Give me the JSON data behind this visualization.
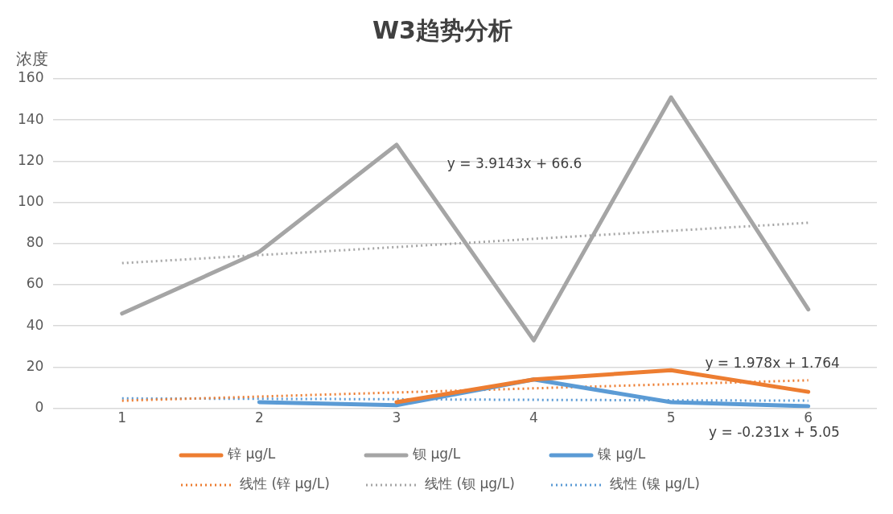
{
  "chart_data": {
    "type": "line",
    "title": "W3趋势分析",
    "ylabel": "浓度",
    "x": [
      1,
      2,
      3,
      4,
      5,
      6
    ],
    "xlim": [
      0.5,
      6.5
    ],
    "xticks": [
      1,
      2,
      3,
      4,
      5,
      6
    ],
    "ylim": [
      0,
      160
    ],
    "yticks": [
      0,
      20,
      40,
      60,
      80,
      100,
      120,
      140,
      160
    ],
    "grid": "y",
    "legend": "bottom",
    "marker": "none",
    "series": [
      {
        "name": "锌 μg/L",
        "color": "#ed7d31",
        "line_style": "solid",
        "values": [
          null,
          null,
          3,
          14,
          18.5,
          8
        ]
      },
      {
        "name": "钡 μg/L",
        "color": "#a5a5a5",
        "line_style": "solid",
        "values": [
          46,
          76,
          128,
          33,
          151,
          48
        ]
      },
      {
        "name": "镍 μg/L",
        "color": "#5b9bd5",
        "line_style": "solid",
        "values": [
          null,
          3,
          1.5,
          14,
          3,
          1
        ]
      },
      {
        "name": "线性 (锌 μg/L)",
        "color": "#ed7d31",
        "line_style": "dotted",
        "values": [
          3.7,
          5.7,
          7.7,
          9.7,
          11.7,
          13.6
        ]
      },
      {
        "name": "线性 (钡 μg/L)",
        "color": "#a5a5a5",
        "line_style": "dotted",
        "values": [
          70.5,
          74.4,
          78.3,
          82.3,
          86.2,
          90.1
        ]
      },
      {
        "name": "线性 (镍 μg/L)",
        "color": "#5b9bd5",
        "line_style": "dotted",
        "values": [
          4.8,
          4.6,
          4.4,
          4.1,
          3.9,
          3.7
        ]
      }
    ],
    "annotations": [
      "y = 3.9143x + 66.6",
      "y = 1.978x + 1.764",
      "y = -0.231x + 5.05"
    ]
  }
}
